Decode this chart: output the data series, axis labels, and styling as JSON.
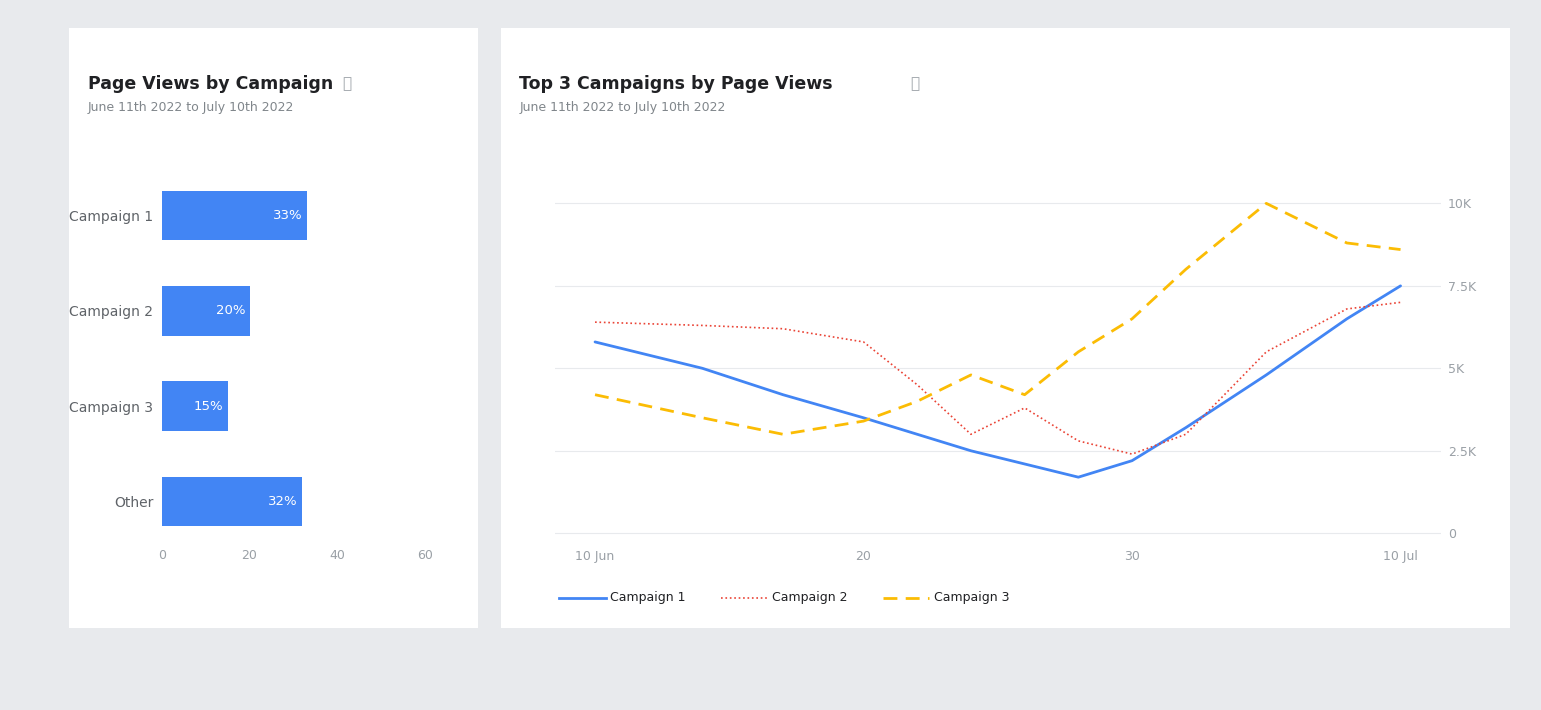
{
  "background_color": "#e8eaed",
  "card_color": "#ffffff",
  "left_title": "Page Views by Campaign",
  "right_title": "Top 3 Campaigns by Page Views",
  "subtitle": "June 11th 2022 to July 10th 2022",
  "bar_labels": [
    "Other",
    "Campaign 3",
    "Campaign 2",
    "Campaign 1"
  ],
  "bar_values": [
    32,
    15,
    20,
    33
  ],
  "bar_color": "#4285f4",
  "bar_text_color": "#ffffff",
  "bar_label_color": "#5f6368",
  "xlim": [
    0,
    65
  ],
  "xticks": [
    0,
    20,
    40,
    60
  ],
  "line_x": [
    10,
    14,
    17,
    20,
    22,
    24,
    26,
    28,
    30,
    32,
    35,
    38,
    40
  ],
  "campaign1_y": [
    5800,
    5000,
    4200,
    3500,
    3000,
    2500,
    2100,
    1700,
    2200,
    3200,
    4800,
    6500,
    7500
  ],
  "campaign2_y": [
    6400,
    6300,
    6200,
    5800,
    4500,
    3000,
    3800,
    2800,
    2400,
    3000,
    5500,
    6800,
    7000
  ],
  "campaign3_y": [
    4200,
    3500,
    3000,
    3400,
    4000,
    4800,
    4200,
    5500,
    6500,
    8000,
    10000,
    8800,
    8600
  ],
  "campaign1_color": "#4285f4",
  "campaign2_color": "#ea4335",
  "campaign3_color": "#fbbc04",
  "axis_label_color": "#9aa0a6",
  "grid_color": "#e8eaed",
  "title_color": "#202124",
  "subtitle_color": "#80868b",
  "legend_labels": [
    "Campaign 1",
    "Campaign 2",
    "Campaign 3"
  ],
  "right_yticks": [
    0,
    2500,
    5000,
    7500,
    10000
  ],
  "right_yticklabels": [
    "0",
    "2.5K",
    "5K",
    "7.5K",
    "10K"
  ],
  "right_xtick_positions": [
    10,
    20,
    30,
    40
  ],
  "right_xtick_labels": [
    "10 Jun",
    "20",
    "30",
    "10 Jul"
  ]
}
